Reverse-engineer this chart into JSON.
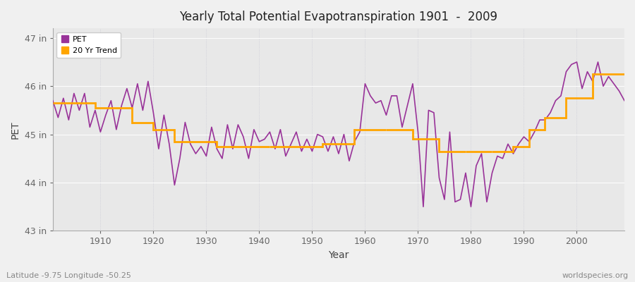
{
  "title": "Yearly Total Potential Evapotranspiration 1901  -  2009",
  "xlabel": "Year",
  "ylabel": "PET",
  "subtitle_left": "Latitude -9.75 Longitude -50.25",
  "subtitle_right": "worldspecies.org",
  "pet_color": "#993399",
  "trend_color": "#FFA500",
  "background_color": "#f0f0f0",
  "plot_bg_color": "#e8e8e8",
  "ylim": [
    43.0,
    47.2
  ],
  "xlim": [
    1901,
    2009
  ],
  "ytick_labels": [
    "43 in",
    "44 in",
    "45 in",
    "46 in",
    "47 in"
  ],
  "ytick_values": [
    43.0,
    44.0,
    45.0,
    46.0,
    47.0
  ],
  "years": [
    1901,
    1902,
    1903,
    1904,
    1905,
    1906,
    1907,
    1908,
    1909,
    1910,
    1911,
    1912,
    1913,
    1914,
    1915,
    1916,
    1917,
    1918,
    1919,
    1920,
    1921,
    1922,
    1923,
    1924,
    1925,
    1926,
    1927,
    1928,
    1929,
    1930,
    1931,
    1932,
    1933,
    1934,
    1935,
    1936,
    1937,
    1938,
    1939,
    1940,
    1941,
    1942,
    1943,
    1944,
    1945,
    1946,
    1947,
    1948,
    1949,
    1950,
    1951,
    1952,
    1953,
    1954,
    1955,
    1956,
    1957,
    1958,
    1959,
    1960,
    1961,
    1962,
    1963,
    1964,
    1965,
    1966,
    1967,
    1968,
    1969,
    1970,
    1971,
    1972,
    1973,
    1974,
    1975,
    1976,
    1977,
    1978,
    1979,
    1980,
    1981,
    1982,
    1983,
    1984,
    1985,
    1986,
    1987,
    1988,
    1989,
    1990,
    1991,
    1992,
    1993,
    1994,
    1995,
    1996,
    1997,
    1998,
    1999,
    2000,
    2001,
    2002,
    2003,
    2004,
    2005,
    2006,
    2007,
    2008,
    2009
  ],
  "pet_values": [
    45.7,
    45.35,
    45.75,
    45.3,
    45.85,
    45.5,
    45.85,
    45.15,
    45.5,
    45.05,
    45.4,
    45.7,
    45.1,
    45.6,
    45.95,
    45.55,
    46.05,
    45.5,
    46.1,
    45.45,
    44.7,
    45.4,
    44.8,
    43.95,
    44.5,
    45.25,
    44.8,
    44.6,
    44.75,
    44.55,
    45.15,
    44.7,
    44.5,
    45.2,
    44.7,
    45.2,
    44.95,
    44.5,
    45.1,
    44.85,
    44.9,
    45.05,
    44.7,
    45.1,
    44.55,
    44.8,
    45.05,
    44.65,
    44.9,
    44.65,
    45.0,
    44.95,
    44.65,
    44.95,
    44.6,
    45.0,
    44.45,
    44.85,
    45.05,
    46.05,
    45.8,
    45.65,
    45.7,
    45.4,
    45.8,
    45.8,
    45.15,
    45.6,
    46.05,
    45.05,
    43.5,
    45.5,
    45.45,
    44.1,
    43.65,
    45.05,
    43.6,
    43.65,
    44.2,
    43.5,
    44.35,
    44.6,
    43.6,
    44.2,
    44.55,
    44.5,
    44.8,
    44.6,
    44.8,
    44.95,
    44.85,
    45.05,
    45.3,
    45.3,
    45.45,
    45.7,
    45.8,
    46.3,
    46.45,
    46.5,
    45.95,
    46.3,
    46.1,
    46.5,
    46.0,
    46.2,
    46.05,
    45.9,
    45.7
  ],
  "trend_segments": [
    {
      "x": [
        1901,
        1909
      ],
      "y": [
        45.65,
        45.65
      ]
    },
    {
      "x": [
        1909,
        1916
      ],
      "y": [
        45.55,
        45.55
      ]
    },
    {
      "x": [
        1916,
        1920
      ],
      "y": [
        45.25,
        45.25
      ]
    },
    {
      "x": [
        1920,
        1924
      ],
      "y": [
        45.1,
        45.1
      ]
    },
    {
      "x": [
        1924,
        1932
      ],
      "y": [
        44.85,
        44.85
      ]
    },
    {
      "x": [
        1932,
        1942
      ],
      "y": [
        44.75,
        44.75
      ]
    },
    {
      "x": [
        1942,
        1952
      ],
      "y": [
        44.75,
        44.75
      ]
    },
    {
      "x": [
        1952,
        1958
      ],
      "y": [
        44.8,
        44.8
      ]
    },
    {
      "x": [
        1958,
        1964
      ],
      "y": [
        45.1,
        45.1
      ]
    },
    {
      "x": [
        1964,
        1969
      ],
      "y": [
        45.1,
        45.1
      ]
    },
    {
      "x": [
        1969,
        1974
      ],
      "y": [
        44.9,
        44.9
      ]
    },
    {
      "x": [
        1974,
        1979
      ],
      "y": [
        44.65,
        44.65
      ]
    },
    {
      "x": [
        1979,
        1984
      ],
      "y": [
        44.65,
        44.65
      ]
    },
    {
      "x": [
        1984,
        1988
      ],
      "y": [
        44.65,
        44.65
      ]
    },
    {
      "x": [
        1988,
        1991
      ],
      "y": [
        44.75,
        44.75
      ]
    },
    {
      "x": [
        1991,
        1994
      ],
      "y": [
        45.1,
        45.1
      ]
    },
    {
      "x": [
        1994,
        1998
      ],
      "y": [
        45.35,
        45.35
      ]
    },
    {
      "x": [
        1998,
        2003
      ],
      "y": [
        45.75,
        45.75
      ]
    },
    {
      "x": [
        2003,
        2009
      ],
      "y": [
        46.25,
        46.25
      ]
    }
  ]
}
